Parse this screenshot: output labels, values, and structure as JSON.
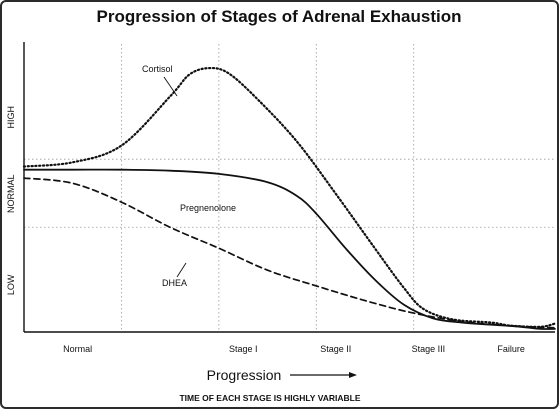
{
  "chart_data": {
    "type": "line",
    "title": "Progression of Stages of Adrenal Exhaustion",
    "xlabel": "Progression",
    "footnote": "TIME OF EACH STAGE IS HIGHLY VARIABLE",
    "categories": [
      "Normal",
      "Stage I",
      "Stage II",
      "Stage III",
      "Failure"
    ],
    "y_levels": [
      "LOW",
      "NORMAL",
      "HIGH"
    ],
    "grid": "dotted",
    "series": [
      {
        "name": "Cortisol",
        "style": "dotted",
        "color": "#111111",
        "points": [
          [
            0.0,
            1.58
          ],
          [
            0.5,
            1.62
          ],
          [
            1.0,
            1.78
          ],
          [
            1.5,
            2.25
          ],
          [
            1.7,
            2.46
          ],
          [
            1.9,
            2.52
          ],
          [
            2.1,
            2.47
          ],
          [
            2.4,
            2.22
          ],
          [
            2.8,
            1.82
          ],
          [
            3.2,
            1.32
          ],
          [
            3.6,
            0.8
          ],
          [
            3.9,
            0.42
          ],
          [
            4.1,
            0.22
          ],
          [
            4.4,
            0.12
          ],
          [
            4.8,
            0.09
          ],
          [
            5.0,
            0.06
          ],
          [
            5.3,
            0.05
          ],
          [
            5.45,
            0.08
          ]
        ]
      },
      {
        "name": "Pregnenolone",
        "style": "solid",
        "color": "#111111",
        "points": [
          [
            0.0,
            1.55
          ],
          [
            0.5,
            1.55
          ],
          [
            1.0,
            1.55
          ],
          [
            1.5,
            1.54
          ],
          [
            2.0,
            1.51
          ],
          [
            2.5,
            1.43
          ],
          [
            2.8,
            1.3
          ],
          [
            3.0,
            1.13
          ],
          [
            3.3,
            0.8
          ],
          [
            3.6,
            0.5
          ],
          [
            3.9,
            0.26
          ],
          [
            4.2,
            0.13
          ],
          [
            4.5,
            0.09
          ],
          [
            4.8,
            0.07
          ],
          [
            5.1,
            0.05
          ],
          [
            5.3,
            0.03
          ],
          [
            5.45,
            0.03
          ]
        ]
      },
      {
        "name": "DHEA",
        "style": "dashed",
        "color": "#111111",
        "points": [
          [
            0.0,
            1.47
          ],
          [
            0.5,
            1.42
          ],
          [
            1.0,
            1.24
          ],
          [
            1.5,
            1.0
          ],
          [
            2.0,
            0.8
          ],
          [
            2.5,
            0.59
          ],
          [
            3.0,
            0.44
          ],
          [
            3.5,
            0.3
          ],
          [
            4.0,
            0.18
          ],
          [
            4.5,
            0.1
          ],
          [
            5.0,
            0.06
          ],
          [
            5.45,
            0.04
          ]
        ]
      }
    ],
    "annotations": [
      {
        "text": "Cortisol",
        "series": "Cortisol"
      },
      {
        "text": "Pregnenolone",
        "series": "Pregnenolone"
      },
      {
        "text": "DHEA",
        "series": "DHEA"
      }
    ]
  }
}
